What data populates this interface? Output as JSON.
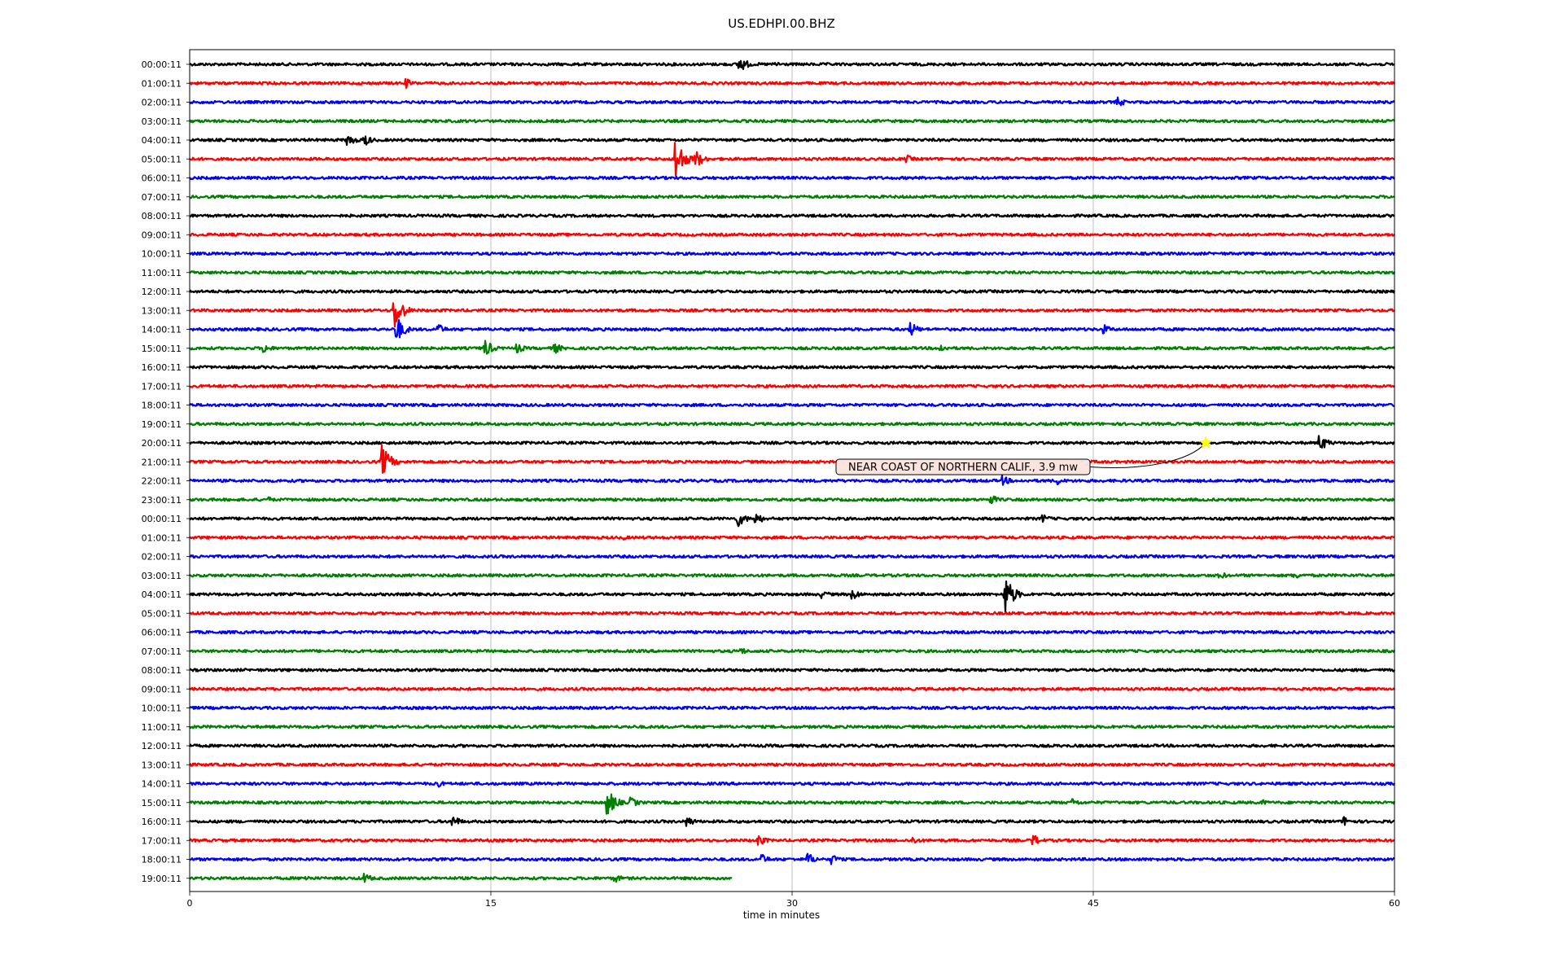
{
  "title": "US.EDHPI.00.BHZ",
  "chart_data": {
    "type": "line",
    "title": "US.EDHPI.00.BHZ",
    "xlabel": "time in minutes",
    "ylabel": "",
    "xlim": [
      0,
      60
    ],
    "xticks": [
      0,
      15,
      30,
      45,
      60
    ],
    "grid": "vertical",
    "row_colors": [
      "#000000",
      "#ff0000",
      "#0000ff",
      "#008000"
    ],
    "row_labels": [
      "00:00:11",
      "01:00:11",
      "02:00:11",
      "03:00:11",
      "04:00:11",
      "05:00:11",
      "06:00:11",
      "07:00:11",
      "08:00:11",
      "09:00:11",
      "10:00:11",
      "11:00:11",
      "12:00:11",
      "13:00:11",
      "14:00:11",
      "15:00:11",
      "16:00:11",
      "17:00:11",
      "18:00:11",
      "19:00:11",
      "20:00:11",
      "21:00:11",
      "22:00:11",
      "23:00:11",
      "00:00:11",
      "01:00:11",
      "02:00:11",
      "03:00:11",
      "04:00:11",
      "05:00:11",
      "06:00:11",
      "07:00:11",
      "08:00:11",
      "09:00:11",
      "10:00:11",
      "11:00:11",
      "12:00:11",
      "13:00:11",
      "14:00:11",
      "15:00:11",
      "16:00:11",
      "17:00:11",
      "18:00:11",
      "19:00:11"
    ],
    "last_row_end_minute": 27,
    "events": [
      {
        "row": 0,
        "minute": 27.4,
        "amplitude": 0.8
      },
      {
        "row": 0,
        "minute": 29.2,
        "amplitude": 0.3
      },
      {
        "row": 1,
        "minute": 10.8,
        "amplitude": 0.45
      },
      {
        "row": 2,
        "minute": 46.2,
        "amplitude": 0.5
      },
      {
        "row": 4,
        "minute": 7.9,
        "amplitude": 0.6
      },
      {
        "row": 4,
        "minute": 8.7,
        "amplitude": 0.6
      },
      {
        "row": 5,
        "minute": 24.2,
        "amplitude": 2.2
      },
      {
        "row": 5,
        "minute": 25.2,
        "amplitude": 0.9
      },
      {
        "row": 5,
        "minute": 35.7,
        "amplitude": 0.4
      },
      {
        "row": 13,
        "minute": 10.2,
        "amplitude": 1.9
      },
      {
        "row": 14,
        "minute": 10.3,
        "amplitude": 1.3
      },
      {
        "row": 14,
        "minute": 12.4,
        "amplitude": 0.5
      },
      {
        "row": 14,
        "minute": 35.9,
        "amplitude": 0.7
      },
      {
        "row": 14,
        "minute": 45.5,
        "amplitude": 0.5
      },
      {
        "row": 15,
        "minute": 3.7,
        "amplitude": 0.5
      },
      {
        "row": 15,
        "minute": 14.7,
        "amplitude": 0.9
      },
      {
        "row": 15,
        "minute": 16.3,
        "amplitude": 0.5
      },
      {
        "row": 15,
        "minute": 18.2,
        "amplitude": 0.5
      },
      {
        "row": 15,
        "minute": 37.4,
        "amplitude": 0.4
      },
      {
        "row": 20,
        "minute": 56.3,
        "amplitude": 0.8
      },
      {
        "row": 21,
        "minute": 9.6,
        "amplitude": 1.6
      },
      {
        "row": 22,
        "minute": 40.5,
        "amplitude": 0.5
      },
      {
        "row": 22,
        "minute": 43.2,
        "amplitude": 0.4
      },
      {
        "row": 23,
        "minute": 3.9,
        "amplitude": 0.3
      },
      {
        "row": 23,
        "minute": 39.9,
        "amplitude": 0.5
      },
      {
        "row": 24,
        "minute": 27.3,
        "amplitude": 0.8
      },
      {
        "row": 24,
        "minute": 28.2,
        "amplitude": 0.6
      },
      {
        "row": 24,
        "minute": 42.5,
        "amplitude": 0.4
      },
      {
        "row": 25,
        "minute": 21.5,
        "amplitude": 0.3
      },
      {
        "row": 26,
        "minute": 55.8,
        "amplitude": 0.3
      },
      {
        "row": 27,
        "minute": 51.3,
        "amplitude": 0.4
      },
      {
        "row": 27,
        "minute": 55.0,
        "amplitude": 0.4
      },
      {
        "row": 28,
        "minute": 31.5,
        "amplitude": 0.4
      },
      {
        "row": 28,
        "minute": 33.0,
        "amplitude": 0.6
      },
      {
        "row": 28,
        "minute": 40.6,
        "amplitude": 2.0
      },
      {
        "row": 31,
        "minute": 27.4,
        "amplitude": 0.4
      },
      {
        "row": 38,
        "minute": 12.3,
        "amplitude": 0.4
      },
      {
        "row": 39,
        "minute": 20.8,
        "amplitude": 1.4
      },
      {
        "row": 39,
        "minute": 22.0,
        "amplitude": 0.5
      },
      {
        "row": 39,
        "minute": 44.0,
        "amplitude": 0.4
      },
      {
        "row": 39,
        "minute": 53.4,
        "amplitude": 0.3
      },
      {
        "row": 40,
        "minute": 13.1,
        "amplitude": 0.6
      },
      {
        "row": 40,
        "minute": 24.8,
        "amplitude": 0.5
      },
      {
        "row": 40,
        "minute": 57.5,
        "amplitude": 0.5
      },
      {
        "row": 41,
        "minute": 28.3,
        "amplitude": 0.6
      },
      {
        "row": 41,
        "minute": 36.0,
        "amplitude": 0.4
      },
      {
        "row": 41,
        "minute": 42.0,
        "amplitude": 0.6
      },
      {
        "row": 42,
        "minute": 28.5,
        "amplitude": 0.5
      },
      {
        "row": 42,
        "minute": 30.8,
        "amplitude": 0.6
      },
      {
        "row": 42,
        "minute": 32.0,
        "amplitude": 0.5
      },
      {
        "row": 43,
        "minute": 5.8,
        "amplitude": 0.3
      },
      {
        "row": 43,
        "minute": 8.7,
        "amplitude": 0.5
      },
      {
        "row": 43,
        "minute": 21.2,
        "amplitude": 0.4
      }
    ],
    "annotations": [
      {
        "text": "NEAR COAST OF NORTHERN CALIF., 3.9 mw",
        "row": 20,
        "minute": 50.6,
        "marker": "star",
        "marker_color": "#ffff00"
      }
    ]
  }
}
